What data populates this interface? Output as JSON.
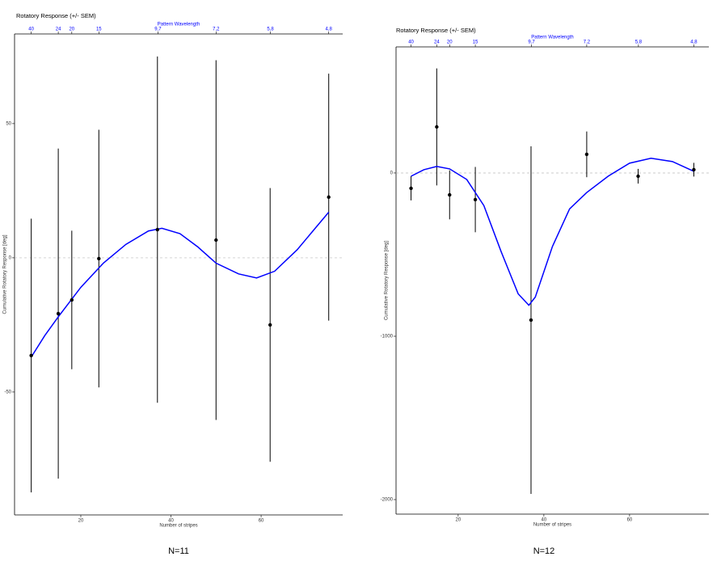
{
  "chart_data": [
    {
      "type": "errorbar",
      "title": "Rotatory Response (+/- SEM)",
      "x_label": "Number of stripes",
      "y_label": "Cumulative Rotatory Response [deg]",
      "x2_label": "Pattern Wavelength",
      "caption": "N=11",
      "x": [
        9,
        15,
        18,
        24,
        37,
        50,
        62,
        75
      ],
      "values": [
        -36.4,
        -20.8,
        -15.7,
        -0.3,
        10.5,
        6.6,
        -25,
        22.6
      ],
      "errors": [
        51,
        61.5,
        25.8,
        48,
        64.5,
        67,
        51,
        46
      ],
      "color": "#000000",
      "curve": {
        "color": "#0000ff",
        "x": [
          9,
          12,
          15,
          20,
          25,
          30,
          35,
          38,
          42,
          46,
          50,
          55,
          59,
          63,
          68,
          72,
          75
        ],
        "y": [
          -37,
          -29,
          -22,
          -11,
          -2,
          5,
          10,
          11,
          9,
          4,
          -2,
          -6,
          -7.5,
          -5,
          3,
          11,
          17
        ]
      },
      "hline": 0,
      "xlim": [
        5.3,
        78.1
      ],
      "ylim": [
        -95.8,
        83.4
      ],
      "xticks": [
        20,
        40,
        60
      ],
      "yticks": [
        -50,
        0,
        50
      ],
      "x2ticks": [
        40,
        24,
        20,
        15,
        {
          "value": 9.7,
          "label": "9,7"
        },
        {
          "value": 7.2,
          "label": "7,2"
        },
        {
          "value": 5.8,
          "label": "5,8"
        },
        {
          "value": 4.8,
          "label": "4,8"
        }
      ]
    },
    {
      "type": "errorbar",
      "title": "Rotatory Response (+/- SEM)",
      "x_label": "Number of stripes",
      "y_label": "Cumulative Rotatory Response [deg]",
      "x2_label": "Pattern Wavelength",
      "caption": "N=12",
      "x": [
        9,
        15,
        18,
        24,
        37,
        50,
        62,
        75
      ],
      "values": [
        -94,
        282,
        -134,
        -163,
        -901,
        114,
        -20,
        20
      ],
      "errors": [
        74,
        358,
        150,
        200,
        1064,
        140,
        45,
        42
      ],
      "color": "#000000",
      "curve": {
        "color": "#0000ff",
        "x": [
          9,
          12,
          15,
          18,
          22,
          26,
          30,
          34,
          36.5,
          38,
          42,
          46,
          50,
          55,
          60,
          65,
          70,
          75
        ],
        "y": [
          -20,
          20,
          40,
          25,
          -40,
          -200,
          -480,
          -740,
          -810,
          -760,
          -450,
          -220,
          -120,
          -20,
          60,
          90,
          70,
          10
        ]
      },
      "hline": 0,
      "xlim": [
        5.5,
        78.5
      ],
      "ylim": [
        -2089,
        772
      ],
      "xticks": [
        20,
        40,
        60
      ],
      "yticks": [
        -2000,
        -1000,
        0
      ],
      "x2ticks": [
        40,
        24,
        20,
        15,
        {
          "value": 9.7,
          "label": "9,7"
        },
        {
          "value": 7.2,
          "label": "7,2"
        },
        {
          "value": 5.8,
          "label": "5,8"
        },
        {
          "value": 4.8,
          "label": "4,8"
        }
      ]
    }
  ]
}
